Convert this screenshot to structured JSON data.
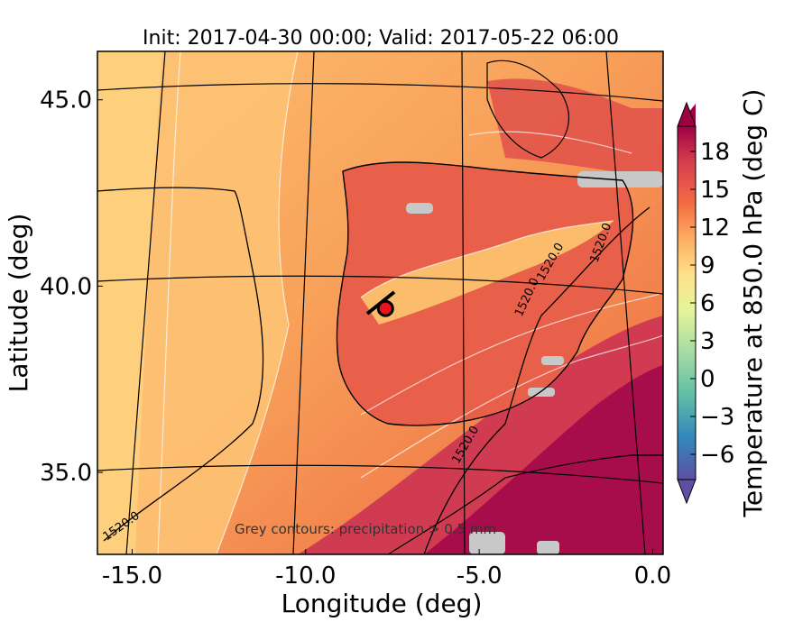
{
  "title": "Init: 2017-04-30 00:00; Valid: 2017-05-22 06:00",
  "x_axis": {
    "label": "Longitude (deg)",
    "ticks": [
      "-15.0",
      "-10.0",
      "-5.0",
      "0.0"
    ],
    "range": [
      -16.0,
      0.3
    ]
  },
  "y_axis": {
    "label": "Latitude (deg)",
    "ticks": [
      "35.0",
      "40.0",
      "45.0"
    ],
    "range": [
      32.8,
      46.3
    ]
  },
  "colorbar": {
    "label": "Temperature at 850.0 hPa (deg C)",
    "ticks": [
      "−6",
      "−3",
      "0",
      "3",
      "6",
      "9",
      "12",
      "15",
      "18"
    ],
    "range": [
      -8,
      20
    ],
    "colors": [
      "#5e4fa2",
      "#3288bd",
      "#66c2a5",
      "#abdda4",
      "#e6f598",
      "#fee08b",
      "#fdae61",
      "#f46d43",
      "#d53e4f",
      "#9e0142"
    ]
  },
  "contour_labels": [
    "1520.0",
    "1520.0",
    "1520.0",
    "1520.0",
    "1520.0"
  ],
  "precip_note": "Grey contours: precipitation > 0.5 mm",
  "marker": {
    "lon": -7.7,
    "lat": 39.4,
    "color": "#e8141a"
  }
}
